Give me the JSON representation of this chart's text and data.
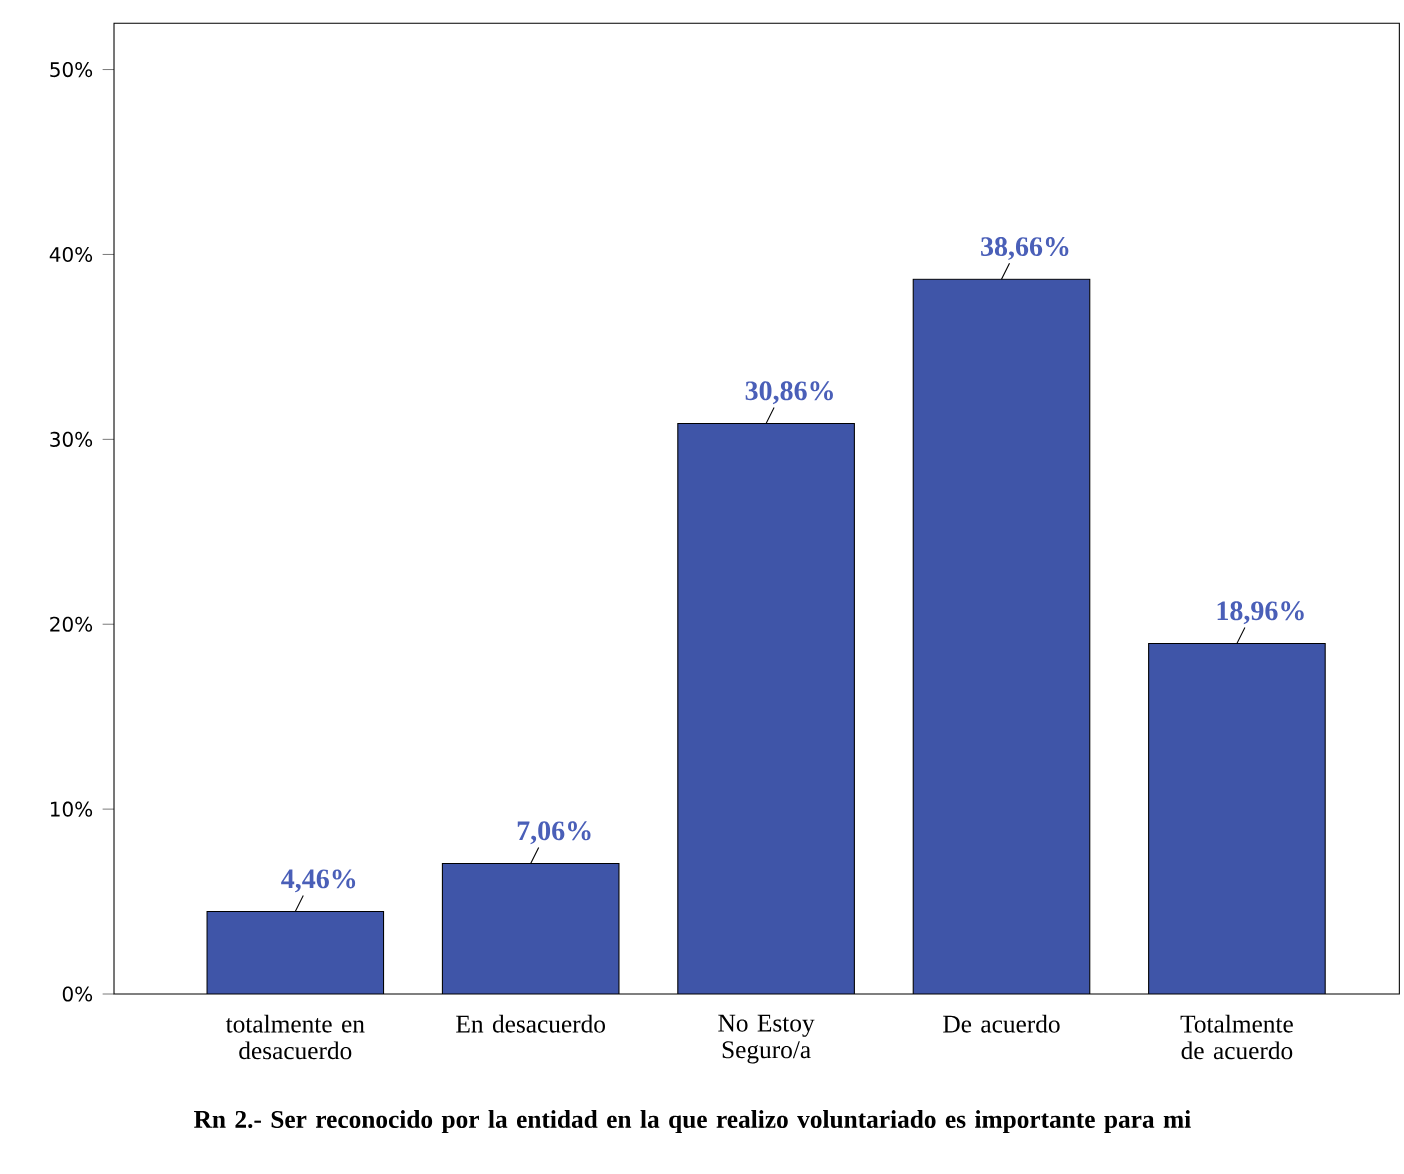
{
  "chart_data": {
    "type": "bar",
    "xlabel": "Rn 2.- Ser reconocido por la entidad en la que realizo voluntariado es importante para mi",
    "categories": [
      "totalmente en desacuerdo",
      "En desacuerdo",
      "No Estoy Seguro/a",
      "De acuerdo",
      "Totalmente de acuerdo"
    ],
    "values": [
      4.46,
      7.06,
      30.86,
      38.66,
      18.96
    ],
    "value_labels": [
      "4,46%",
      "7,06%",
      "30,86%",
      "38,66%",
      "18,96%"
    ],
    "color": "#3f55a8",
    "ylim": [
      0,
      52.5
    ],
    "yticks": [
      {
        "value": 0,
        "label": "0%"
      },
      {
        "value": 10,
        "label": "10%"
      },
      {
        "value": 20,
        "label": "20%"
      },
      {
        "value": 30,
        "label": "30%"
      },
      {
        "value": 40,
        "label": "40%"
      },
      {
        "value": 50,
        "label": "50%"
      }
    ],
    "grid": false
  }
}
